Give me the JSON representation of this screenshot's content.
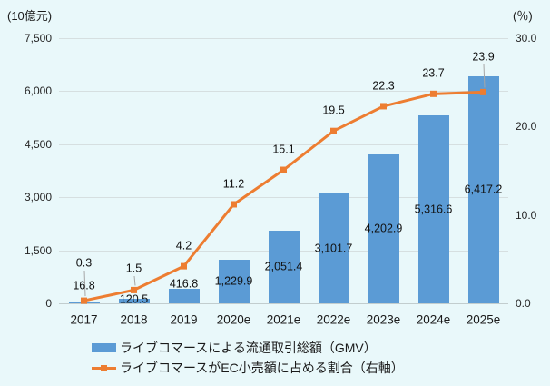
{
  "chart_data": {
    "type": "bar",
    "combo": "bar+line",
    "title": "",
    "categories": [
      "2017",
      "2018",
      "2019",
      "2020e",
      "2021e",
      "2022e",
      "2023e",
      "2024e",
      "2025e"
    ],
    "left_axis": {
      "title": "(10億元)",
      "min": 0,
      "max": 7500,
      "tick_values": [
        0,
        1500,
        3000,
        4500,
        6000,
        7500
      ],
      "tick_labels": [
        "0",
        "1,500",
        "3,000",
        "4,500",
        "6,000",
        "7,500"
      ]
    },
    "right_axis": {
      "title": "(％)",
      "min": 0,
      "max": 30,
      "tick_values": [
        0,
        10,
        20,
        30
      ],
      "tick_labels": [
        "0.0",
        "10.0",
        "20.0",
        "30.0"
      ]
    },
    "series": [
      {
        "name": "ライブコマースによる流通取引総額（GMV）",
        "type": "bar",
        "axis": "left",
        "color": "#5B9BD5",
        "values": [
          16.8,
          120.5,
          416.8,
          1229.9,
          2051.4,
          3101.7,
          4202.9,
          5316.6,
          6417.2
        ],
        "labels": [
          "16.8",
          "120.5",
          "416.8",
          "1,229.9",
          "2,051.4",
          "3,101.7",
          "4,202.9",
          "5,316.6",
          "6,417.2"
        ],
        "label_y_overrides": {
          "0": 315,
          "1": 330,
          "2": 313
        }
      },
      {
        "name": "ライブコマースがEC小売額に占める割合（右軸）",
        "type": "line",
        "axis": "right",
        "color": "#ED7D31",
        "values": [
          0.3,
          1.5,
          4.2,
          11.2,
          15.1,
          19.5,
          22.3,
          23.7,
          23.9
        ],
        "labels": [
          "0.3",
          "1.5",
          "4.2",
          "11.2",
          "15.1",
          "19.5",
          "22.3",
          "23.7",
          "23.9"
        ],
        "label_y_overrides": {
          "0": 290,
          "1": 296,
          "8": 63
        },
        "callout_indices": [
          0,
          1,
          8
        ]
      }
    ],
    "grid": true,
    "legend_position": "bottom-left",
    "background_color": "#E9F8FA",
    "gridline_color": "#D6DFE0",
    "leader_line_color": "#A6A6A6"
  }
}
